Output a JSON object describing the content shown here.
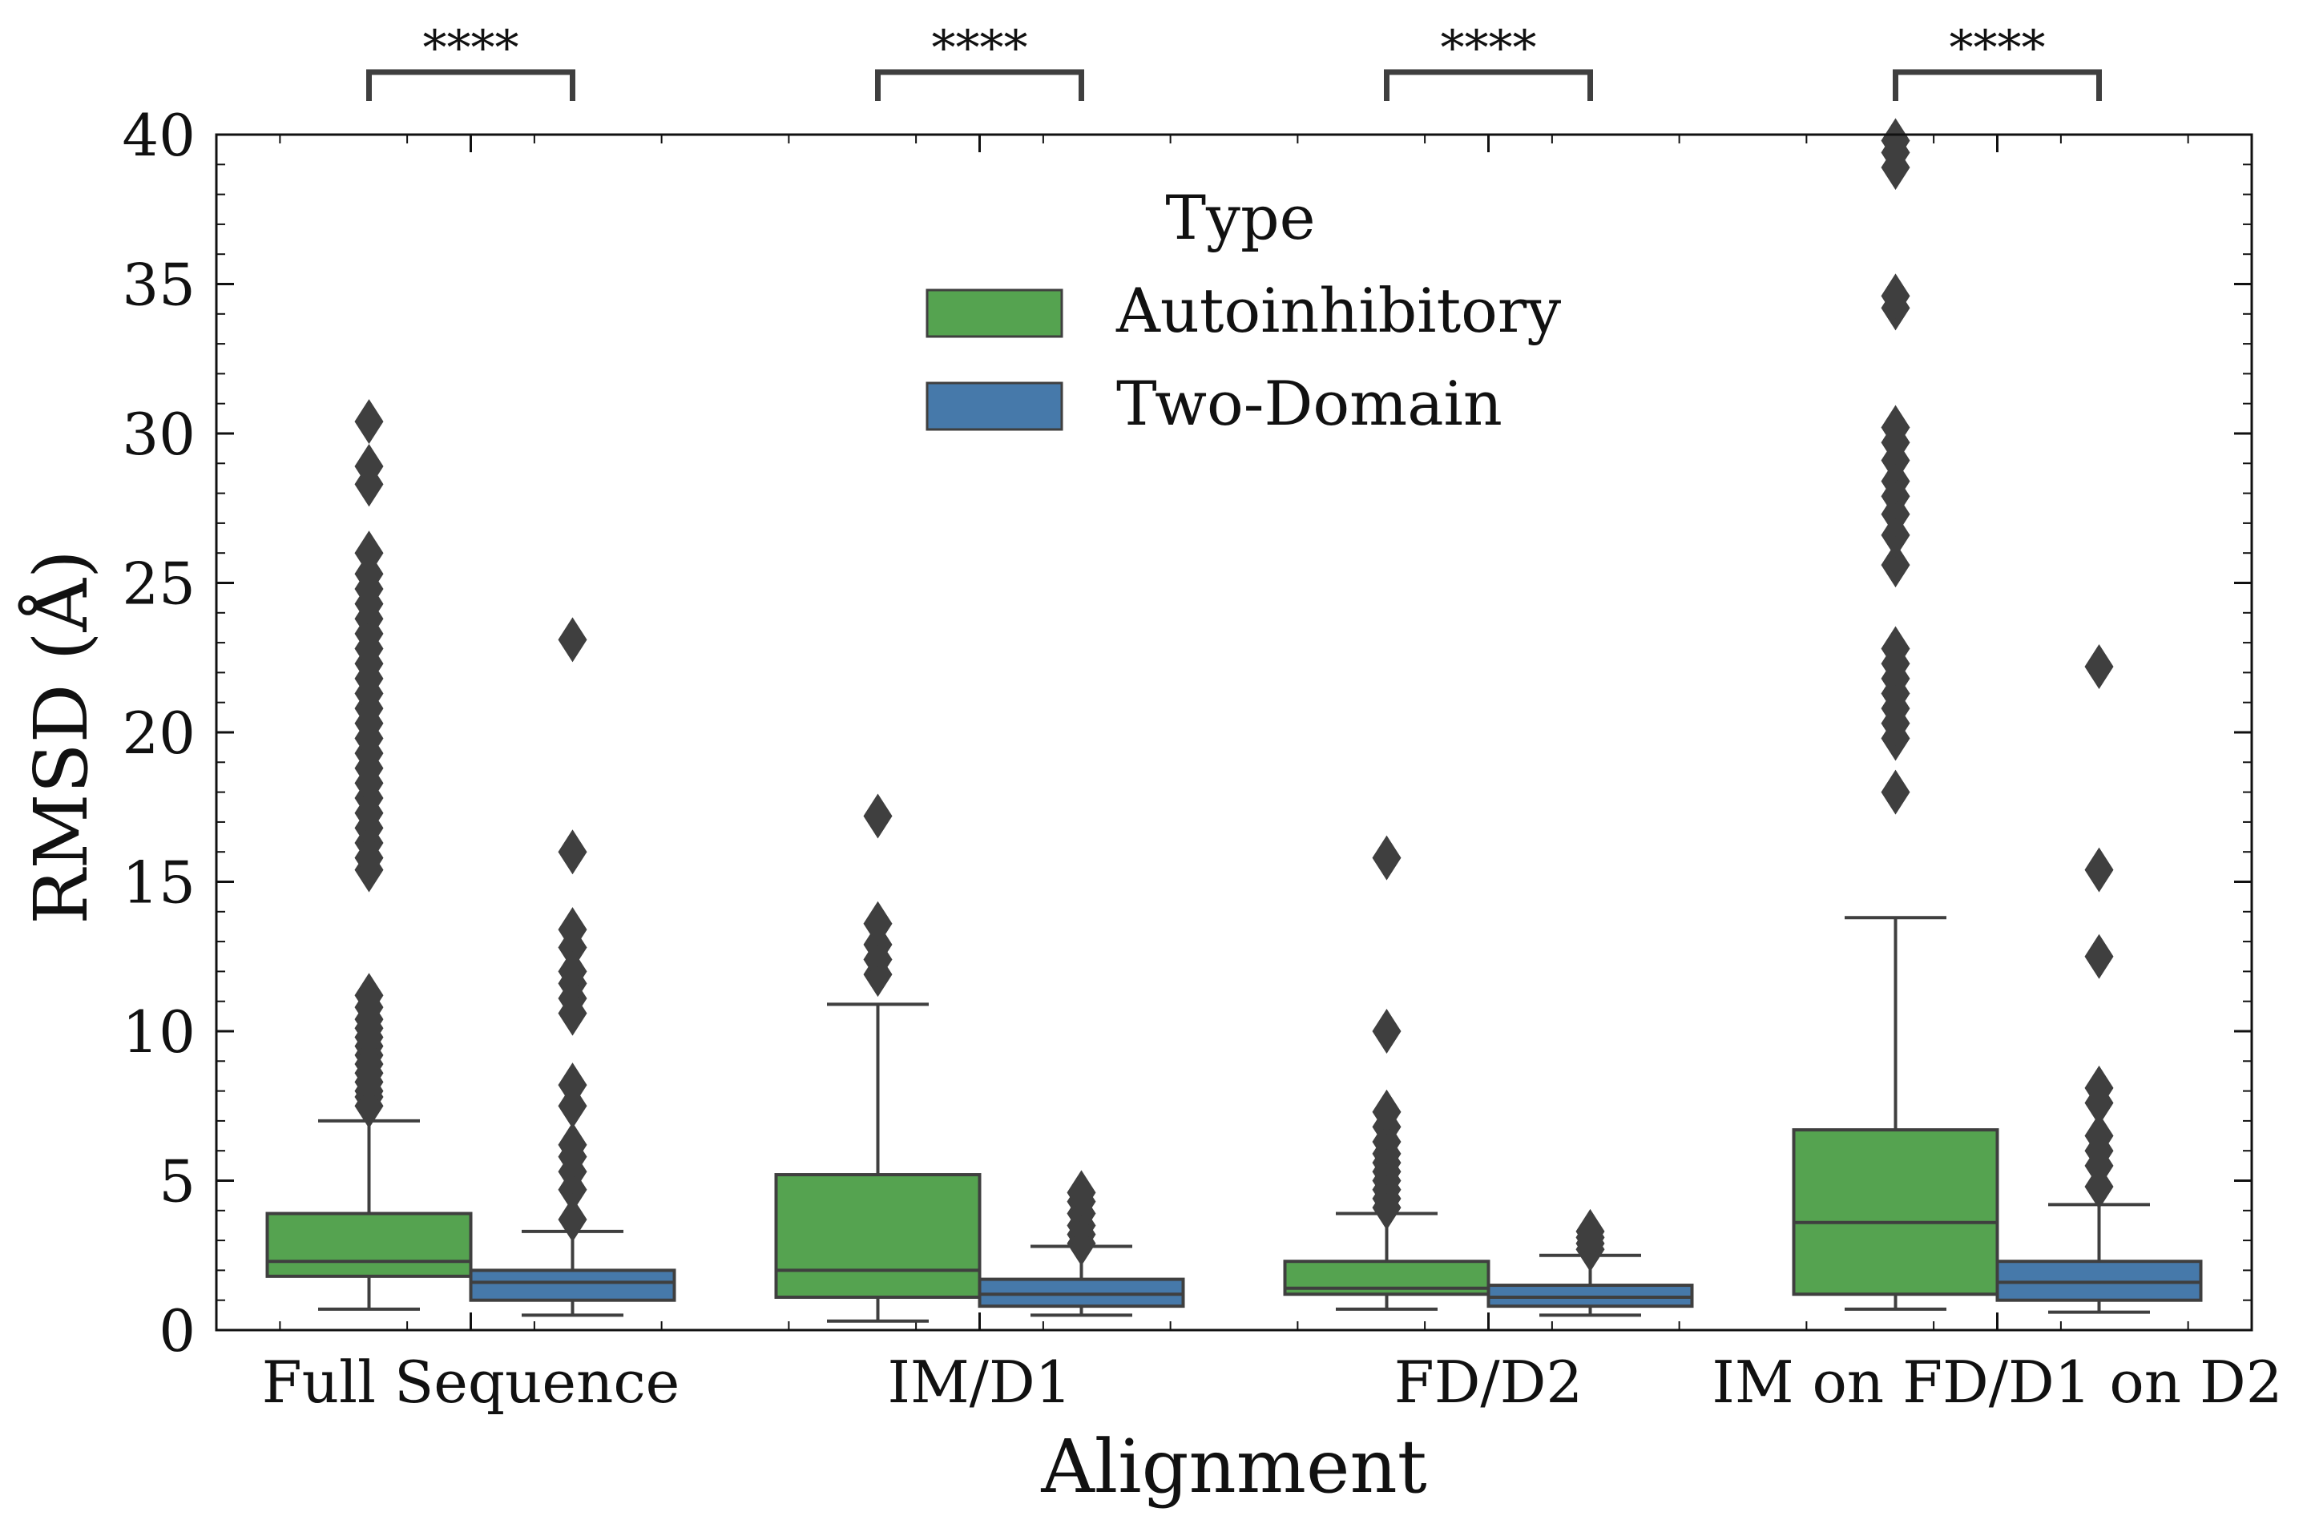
{
  "chart_data": {
    "type": "box",
    "xlabel": "Alignment",
    "ylabel": "RMSD (Å)",
    "ylim": [
      0,
      40
    ],
    "yticks": [
      0,
      5,
      10,
      15,
      20,
      25,
      30,
      35,
      40
    ],
    "categories": [
      "Full Sequence",
      "IM/D1",
      "FD/D2",
      "IM on FD/D1 on D2"
    ],
    "legend": {
      "title": "Type",
      "position": "upper center",
      "entries": [
        "Autoinhibitory",
        "Two-Domain"
      ]
    },
    "significance": [
      "****",
      "****",
      "****",
      "****"
    ],
    "colors": {
      "Autoinhibitory": "#55a350",
      "Two-Domain": "#4679aa",
      "edge": "#3f3f3f"
    },
    "series": [
      {
        "name": "Autoinhibitory",
        "boxes": [
          {
            "whisker_low": 0.7,
            "q1": 1.8,
            "median": 2.3,
            "q3": 3.9,
            "whisker_high": 7.0,
            "outliers": [
              7.5,
              7.8,
              8.0,
              8.3,
              8.6,
              8.9,
              9.2,
              9.5,
              9.8,
              10.1,
              10.4,
              10.8,
              11.2,
              15.4,
              15.8,
              16.3,
              16.8,
              17.3,
              17.8,
              18.3,
              18.8,
              19.3,
              19.8,
              20.3,
              20.8,
              21.3,
              21.8,
              22.3,
              22.8,
              23.3,
              23.8,
              24.3,
              24.8,
              25.3,
              26.0,
              28.3,
              28.9,
              30.4
            ]
          },
          {
            "whisker_low": 0.3,
            "q1": 1.1,
            "median": 2.0,
            "q3": 5.2,
            "whisker_high": 10.9,
            "outliers": [
              11.9,
              12.4,
              12.9,
              13.6,
              17.2
            ]
          },
          {
            "whisker_low": 0.7,
            "q1": 1.2,
            "median": 1.4,
            "q3": 2.3,
            "whisker_high": 3.9,
            "outliers": [
              4.1,
              4.4,
              4.7,
              5.0,
              5.3,
              5.6,
              5.9,
              6.3,
              6.8,
              7.3,
              10.0,
              15.8
            ]
          },
          {
            "whisker_low": 0.7,
            "q1": 1.2,
            "median": 3.6,
            "q3": 6.7,
            "whisker_high": 13.8,
            "outliers": [
              18.0,
              19.8,
              20.3,
              20.8,
              21.3,
              21.8,
              22.3,
              22.8,
              25.6,
              26.6,
              27.3,
              27.9,
              28.4,
              29.1,
              29.7,
              30.2,
              34.2,
              34.6,
              38.9,
              39.4,
              39.8
            ]
          }
        ]
      },
      {
        "name": "Two-Domain",
        "boxes": [
          {
            "whisker_low": 0.5,
            "q1": 1.0,
            "median": 1.6,
            "q3": 2.0,
            "whisker_high": 3.3,
            "outliers": [
              3.7,
              4.7,
              5.3,
              5.8,
              6.2,
              7.5,
              8.2,
              10.6,
              11.1,
              11.6,
              12.0,
              12.8,
              13.4,
              16.0,
              23.1
            ]
          },
          {
            "whisker_low": 0.5,
            "q1": 0.8,
            "median": 1.2,
            "q3": 1.7,
            "whisker_high": 2.8,
            "outliers": [
              2.9,
              3.2,
              3.5,
              3.9,
              4.3,
              4.6
            ]
          },
          {
            "whisker_low": 0.5,
            "q1": 0.8,
            "median": 1.1,
            "q3": 1.5,
            "whisker_high": 2.5,
            "outliers": [
              2.7,
              2.9,
              3.1,
              3.3
            ]
          },
          {
            "whisker_low": 0.6,
            "q1": 1.0,
            "median": 1.6,
            "q3": 2.3,
            "whisker_high": 4.2,
            "outliers": [
              4.8,
              5.5,
              6.0,
              6.5,
              7.6,
              8.1,
              12.5,
              15.4,
              22.2
            ]
          }
        ]
      }
    ]
  }
}
